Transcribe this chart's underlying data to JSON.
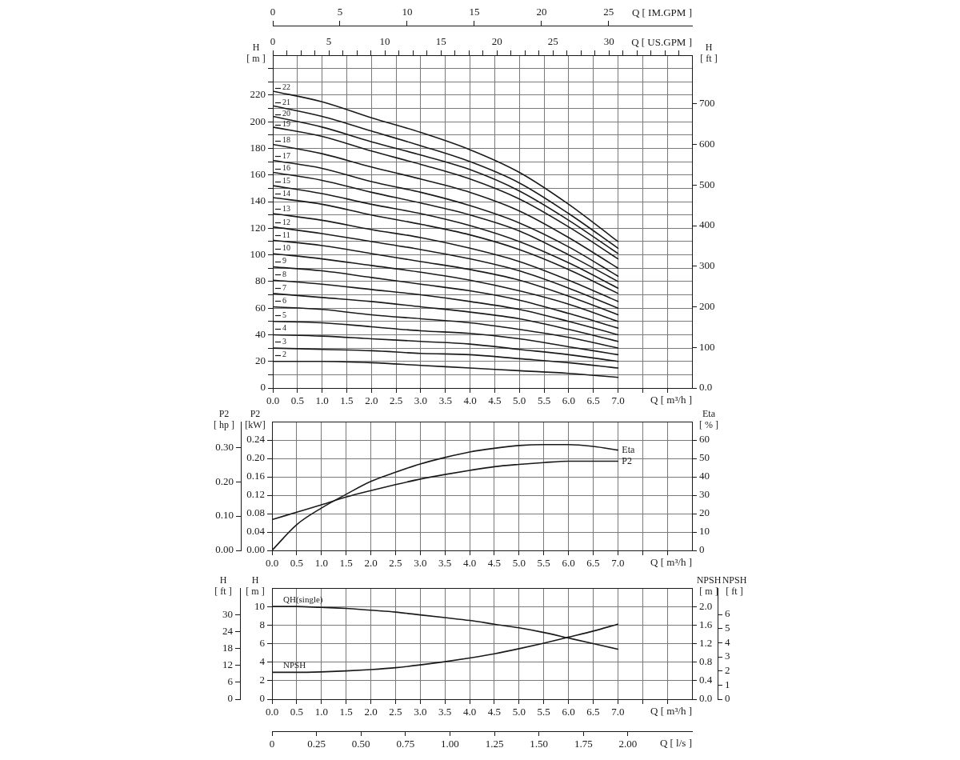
{
  "chart_data": [
    {
      "type": "line",
      "xlabel": "Q [ m³/h ]",
      "ylabel": "H [ m ]",
      "grid": true,
      "legend": "left",
      "x": [
        0,
        1,
        2,
        3,
        4,
        5,
        6,
        7
      ],
      "xlim": [
        0,
        8.5
      ],
      "xticks": [
        {
          "value": 0,
          "label": "0.0"
        },
        {
          "value": 0.5,
          "label": "0.5"
        },
        {
          "value": 1,
          "label": "1.0"
        },
        {
          "value": 1.5,
          "label": "1.5"
        },
        {
          "value": 2,
          "label": "2.0"
        },
        {
          "value": 2.5,
          "label": "2.5"
        },
        {
          "value": 3,
          "label": "3.0"
        },
        {
          "value": 3.5,
          "label": "3.5"
        },
        {
          "value": 4,
          "label": "4.0"
        },
        {
          "value": 4.5,
          "label": "4.5"
        },
        {
          "value": 5,
          "label": "5.0"
        },
        {
          "value": 5.5,
          "label": "5.5"
        },
        {
          "value": 6,
          "label": "6.0"
        },
        {
          "value": 6.5,
          "label": "6.5"
        },
        {
          "value": 7,
          "label": "7.0"
        },
        {
          "value": 7.5,
          "label": null
        },
        {
          "value": 8,
          "label": null
        }
      ],
      "ylim": [
        0,
        250
      ],
      "yticks": [
        0,
        {
          "value": 10,
          "label": null
        },
        20,
        {
          "value": 30,
          "label": null
        },
        40,
        {
          "value": 50,
          "label": null
        },
        60,
        {
          "value": 70,
          "label": null
        },
        80,
        {
          "value": 90,
          "label": null
        },
        100,
        {
          "value": 110,
          "label": null
        },
        120,
        {
          "value": 130,
          "label": null
        },
        140,
        {
          "value": 150,
          "label": null
        },
        160,
        {
          "value": 170,
          "label": null
        },
        180,
        {
          "value": 190,
          "label": null
        },
        200,
        {
          "value": 210,
          "label": null
        },
        220,
        {
          "value": 230,
          "label": null
        },
        {
          "value": 240,
          "label": null
        }
      ],
      "series": [
        {
          "name": "22",
          "color": "#1a1a1a",
          "values": [
            223,
            215,
            203,
            192,
            179,
            162,
            138,
            110
          ]
        },
        {
          "name": "21",
          "color": "#1a1a1a",
          "values": [
            212,
            204,
            193,
            182,
            170,
            154,
            131,
            105
          ]
        },
        {
          "name": "20",
          "color": "#1a1a1a",
          "values": [
            204,
            196,
            185,
            175,
            164,
            148,
            126,
            101
          ]
        },
        {
          "name": "19",
          "color": "#1a1a1a",
          "values": [
            196,
            189,
            178,
            168,
            157,
            142,
            121,
            97
          ]
        },
        {
          "name": "18",
          "color": "#1a1a1a",
          "values": [
            183,
            176,
            166,
            157,
            147,
            133,
            113,
            90
          ]
        },
        {
          "name": "17",
          "color": "#1a1a1a",
          "values": [
            171,
            165,
            155,
            147,
            137,
            124,
            106,
            84
          ]
        },
        {
          "name": "16",
          "color": "#1a1a1a",
          "values": [
            162,
            156,
            147,
            139,
            130,
            118,
            100,
            80
          ]
        },
        {
          "name": "15",
          "color": "#1a1a1a",
          "values": [
            152,
            146,
            138,
            131,
            122,
            110,
            94,
            75
          ]
        },
        {
          "name": "14",
          "color": "#1a1a1a",
          "values": [
            143,
            138,
            130,
            123,
            115,
            104,
            89,
            71
          ]
        },
        {
          "name": "13",
          "color": "#1a1a1a",
          "values": [
            131,
            126,
            119,
            113,
            105,
            95,
            81,
            65
          ]
        },
        {
          "name": "12",
          "color": "#1a1a1a",
          "values": [
            121,
            116,
            110,
            104,
            97,
            88,
            75,
            60
          ]
        },
        {
          "name": "11",
          "color": "#1a1a1a",
          "values": [
            111,
            107,
            101,
            95,
            89,
            81,
            69,
            55
          ]
        },
        {
          "name": "10",
          "color": "#1a1a1a",
          "values": [
            101,
            97,
            92,
            87,
            81,
            73,
            63,
            50
          ]
        },
        {
          "name": "9",
          "color": "#1a1a1a",
          "values": [
            91,
            88,
            83,
            78,
            73,
            66,
            56,
            45
          ]
        },
        {
          "name": "8",
          "color": "#1a1a1a",
          "values": [
            81,
            78,
            74,
            70,
            65,
            59,
            50,
            40
          ]
        },
        {
          "name": "7",
          "color": "#1a1a1a",
          "values": [
            71,
            68,
            65,
            61,
            57,
            52,
            44,
            35
          ]
        },
        {
          "name": "6",
          "color": "#1a1a1a",
          "values": [
            61,
            59,
            55,
            52,
            49,
            44,
            38,
            30
          ]
        },
        {
          "name": "5",
          "color": "#1a1a1a",
          "values": [
            50,
            49,
            46,
            43,
            41,
            37,
            31,
            25
          ]
        },
        {
          "name": "4",
          "color": "#1a1a1a",
          "values": [
            40,
            39,
            37,
            35,
            33,
            29,
            25,
            20
          ]
        },
        {
          "name": "3",
          "color": "#1a1a1a",
          "values": [
            30,
            29,
            28,
            26,
            25,
            22,
            19,
            15
          ]
        },
        {
          "name": "2",
          "color": "#1a1a1a",
          "values": [
            20,
            20,
            19,
            17,
            15,
            13,
            11,
            8
          ]
        }
      ]
    },
    {
      "type": "line",
      "xlabel": "Q [ m³/h ]",
      "ylabel": "P2 [kW]",
      "y2label": "Eta [ % ]",
      "y3label": "P2 [ hp ]",
      "grid": true,
      "x": [
        0,
        0.5,
        1,
        1.5,
        2,
        2.5,
        3,
        3.5,
        4,
        4.5,
        5,
        5.5,
        6,
        6.5,
        7
      ],
      "xlim": [
        0,
        8.5
      ],
      "xticks": [
        {
          "value": 0,
          "label": "0.0"
        },
        {
          "value": 0.5,
          "label": "0.5"
        },
        {
          "value": 1,
          "label": "1.0"
        },
        {
          "value": 1.5,
          "label": "1.5"
        },
        {
          "value": 2,
          "label": "2.0"
        },
        {
          "value": 2.5,
          "label": "2.5"
        },
        {
          "value": 3,
          "label": "3.0"
        },
        {
          "value": 3.5,
          "label": "3.5"
        },
        {
          "value": 4,
          "label": "4.0"
        },
        {
          "value": 4.5,
          "label": "4.5"
        },
        {
          "value": 5,
          "label": "5.0"
        },
        {
          "value": 5.5,
          "label": "5.5"
        },
        {
          "value": 6,
          "label": "6.0"
        },
        {
          "value": 6.5,
          "label": "6.5"
        },
        {
          "value": 7,
          "label": "7.0"
        },
        {
          "value": 7.5,
          "label": null
        },
        {
          "value": 8,
          "label": null
        }
      ],
      "ylim": [
        0,
        0.28
      ],
      "yticks": [
        {
          "value": 0,
          "label": "0.00"
        },
        {
          "value": 0.04,
          "label": "0.04"
        },
        {
          "value": 0.08,
          "label": "0.08"
        },
        {
          "value": 0.12,
          "label": "0.12"
        },
        {
          "value": 0.16,
          "label": "0.16"
        },
        {
          "value": 0.2,
          "label": "0.20"
        },
        {
          "value": 0.24,
          "label": "0.24"
        }
      ],
      "y2lim": [
        0,
        70
      ],
      "y2ticks": [
        0,
        10,
        20,
        30,
        40,
        50,
        60
      ],
      "y3lim": [
        0,
        0.375
      ],
      "y3ticks": [
        {
          "value": 0,
          "label": "0.00"
        },
        {
          "value": 0.1,
          "label": "0.10"
        },
        {
          "value": 0.2,
          "label": "0.20"
        },
        {
          "value": 0.3,
          "label": "0.30"
        }
      ],
      "series": [
        {
          "name": "Eta",
          "color": "#1a1a1a",
          "axis": "y2",
          "values": [
            0,
            14,
            23,
            30.5,
            37.5,
            42.5,
            47,
            50.5,
            53.5,
            55.5,
            57,
            57.5,
            57.5,
            56.5,
            54.5
          ]
        },
        {
          "name": "P2",
          "color": "#1a1a1a",
          "values": [
            0.067,
            0.083,
            0.099,
            0.116,
            0.13,
            0.143,
            0.155,
            0.165,
            0.174,
            0.182,
            0.187,
            0.191,
            0.194,
            0.194,
            0.194
          ]
        }
      ]
    },
    {
      "type": "line",
      "xlabel": "Q [ m³/h ]",
      "x2label": "Q [ l/s ]",
      "ylabel": "H [ m ]",
      "y2label": "NPSH [ m ]",
      "y3label": "H [ ft ]",
      "grid": true,
      "x": [
        0,
        0.5,
        1,
        1.5,
        2,
        2.5,
        3,
        3.5,
        4,
        4.5,
        5,
        5.5,
        6,
        6.5,
        7
      ],
      "xlim": [
        0,
        8.5
      ],
      "xticks": [
        {
          "value": 0,
          "label": "0.0"
        },
        {
          "value": 0.5,
          "label": "0.5"
        },
        {
          "value": 1,
          "label": "1.0"
        },
        {
          "value": 1.5,
          "label": "1.5"
        },
        {
          "value": 2,
          "label": "2.0"
        },
        {
          "value": 2.5,
          "label": "2.5"
        },
        {
          "value": 3,
          "label": "3.0"
        },
        {
          "value": 3.5,
          "label": "3.5"
        },
        {
          "value": 4,
          "label": "4.0"
        },
        {
          "value": 4.5,
          "label": "4.5"
        },
        {
          "value": 5,
          "label": "5.0"
        },
        {
          "value": 5.5,
          "label": "5.5"
        },
        {
          "value": 6,
          "label": "6.0"
        },
        {
          "value": 6.5,
          "label": "6.5"
        },
        {
          "value": 7,
          "label": "7.0"
        },
        {
          "value": 7.5,
          "label": null
        },
        {
          "value": 8,
          "label": null
        }
      ],
      "x2lim": [
        0,
        2.36
      ],
      "x2ticks": [
        {
          "value": 0,
          "label": "0"
        },
        {
          "value": 0.25,
          "label": "0.25"
        },
        {
          "value": 0.5,
          "label": "0.50"
        },
        {
          "value": 0.75,
          "label": "0.75"
        },
        {
          "value": 1,
          "label": "1.00"
        },
        {
          "value": 1.25,
          "label": "1.25"
        },
        {
          "value": 1.5,
          "label": "1.50"
        },
        {
          "value": 1.75,
          "label": "1.75"
        },
        {
          "value": 2,
          "label": "2.00"
        }
      ],
      "ylim": [
        0,
        12
      ],
      "yticks": [
        0,
        2,
        4,
        6,
        8,
        10
      ],
      "y2lim": [
        0,
        2.4
      ],
      "y2ticks": [
        {
          "value": 0,
          "label": "0.0"
        },
        {
          "value": 0.4,
          "label": "0.4"
        },
        {
          "value": 0.8,
          "label": "0.8"
        },
        {
          "value": 1.2,
          "label": "1.2"
        },
        {
          "value": 1.6,
          "label": "1.6"
        },
        {
          "value": 2,
          "label": "2.0"
        }
      ],
      "y3lim": [
        0,
        39.4
      ],
      "y3ticks": [
        0,
        6,
        12,
        18,
        24,
        30
      ],
      "series": [
        {
          "name": "QH(single)",
          "color": "#1a1a1a",
          "values": [
            10,
            10,
            9.9,
            9.8,
            9.6,
            9.4,
            9.1,
            8.8,
            8.5,
            8.1,
            7.7,
            7.2,
            6.6,
            6,
            5.4
          ]
        },
        {
          "name": "NPSH",
          "color": "#1a1a1a",
          "axis": "y2",
          "values": [
            0.58,
            0.58,
            0.59,
            0.61,
            0.64,
            0.68,
            0.74,
            0.81,
            0.89,
            0.98,
            1.09,
            1.21,
            1.34,
            1.47,
            1.62
          ]
        }
      ]
    },
    {
      "type": "line",
      "xlabel": "Q [ US.GPM ]",
      "x2label": "Q [ IM.GPM ]",
      "ylabel": "H [ ft ]",
      "xlim": [
        0,
        37.4
      ],
      "xticks": [
        0,
        {
          "value": 1.25,
          "label": null
        },
        {
          "value": 2.5,
          "label": null
        },
        {
          "value": 3.75,
          "label": null
        },
        5,
        {
          "value": 6.25,
          "label": null
        },
        {
          "value": 7.5,
          "label": null
        },
        {
          "value": 8.75,
          "label": null
        },
        10,
        {
          "value": 11.25,
          "label": null
        },
        {
          "value": 12.5,
          "label": null
        },
        {
          "value": 13.75,
          "label": null
        },
        15,
        {
          "value": 16.25,
          "label": null
        },
        {
          "value": 17.5,
          "label": null
        },
        {
          "value": 18.75,
          "label": null
        },
        20,
        {
          "value": 21.25,
          "label": null
        },
        {
          "value": 22.5,
          "label": null
        },
        {
          "value": 23.75,
          "label": null
        },
        25,
        {
          "value": 26.25,
          "label": null
        },
        {
          "value": 27.5,
          "label": null
        },
        {
          "value": 28.75,
          "label": null
        },
        30,
        {
          "value": 31.25,
          "label": null
        },
        {
          "value": 32.5,
          "label": null
        },
        {
          "value": 33.75,
          "label": null
        },
        {
          "value": 35,
          "label": null
        },
        {
          "value": 36.25,
          "label": null
        }
      ],
      "x2lim": [
        0,
        31.2
      ],
      "x2ticks": [
        0,
        5,
        10,
        15,
        20,
        25
      ],
      "ylim": [
        0,
        820
      ],
      "yticks": [
        {
          "value": 0,
          "label": "0.0"
        },
        100,
        200,
        300,
        400,
        500,
        600,
        700
      ]
    },
    {
      "type": "line",
      "ylabel": "NPSH [ ft ]",
      "tick_labels": "y",
      "xlim": [
        0,
        8.5
      ],
      "ylim": [
        0,
        7.87
      ],
      "yticks": [
        0,
        1,
        2,
        3,
        4,
        5,
        6
      ]
    }
  ]
}
